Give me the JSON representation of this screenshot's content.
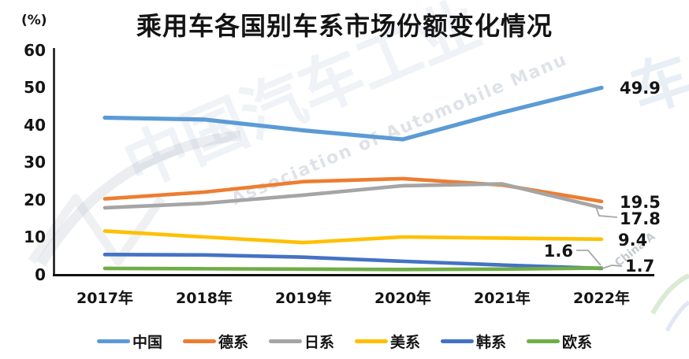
{
  "title": "乘用车各国别车系市场份额变化情况",
  "y_axis": {
    "unit": "(%)",
    "ticks": [
      0,
      10,
      20,
      30,
      40,
      50,
      60
    ]
  },
  "chart_data": {
    "type": "line",
    "categories": [
      "2017年",
      "2018年",
      "2019年",
      "2020年",
      "2021年",
      "2022年"
    ],
    "series": [
      {
        "key": "china",
        "name": "中国",
        "color": "#5B9BD5",
        "values": [
          41.9,
          41.4,
          38.5,
          36.1,
          43.3,
          49.9
        ],
        "end_label": "49.9"
      },
      {
        "key": "german",
        "name": "德系",
        "color": "#ED7D31",
        "values": [
          20.2,
          22.0,
          24.8,
          25.6,
          23.9,
          19.5
        ],
        "end_label": "19.5"
      },
      {
        "key": "japanese",
        "name": "日系",
        "color": "#A5A5A5",
        "values": [
          17.8,
          19.0,
          21.2,
          23.7,
          24.2,
          17.8
        ],
        "end_label": "17.8"
      },
      {
        "key": "american",
        "name": "美系",
        "color": "#FFC000",
        "values": [
          11.6,
          10.0,
          8.5,
          10.0,
          9.7,
          9.4
        ],
        "end_label": "9.4"
      },
      {
        "key": "korean",
        "name": "韩系",
        "color": "#4472C4",
        "values": [
          5.3,
          5.2,
          4.6,
          3.5,
          2.5,
          1.6
        ],
        "end_label": "1.6"
      },
      {
        "key": "european",
        "name": "欧系",
        "color": "#70AD47",
        "values": [
          1.6,
          1.5,
          1.4,
          1.3,
          1.4,
          1.7
        ],
        "end_label": "1.7"
      }
    ],
    "ylim": [
      0,
      60
    ],
    "xlabel": "",
    "ylabel": "(%)",
    "grid": false,
    "legend_position": "bottom"
  },
  "watermarks": {
    "cn_text": "中国汽车工业",
    "en_text": "Association of Automobile Manu",
    "corner_text": "China A",
    "glyph": "车"
  }
}
